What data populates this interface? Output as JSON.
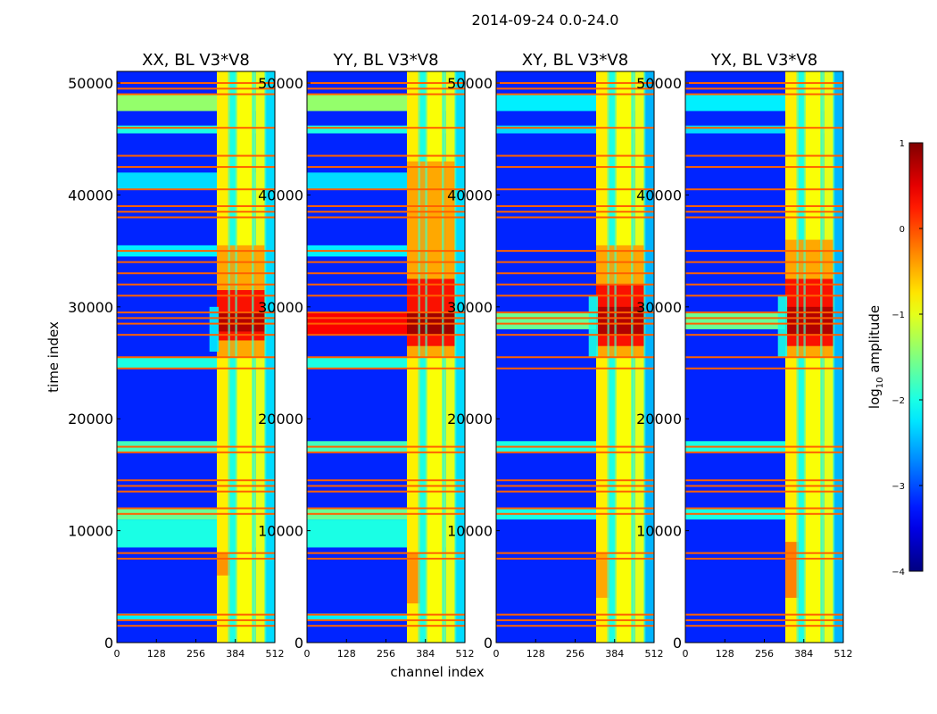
{
  "chart_data": {
    "type": "heatmap",
    "suptitle": "2014-09-24 0.0-24.0",
    "xlabel": "channel index",
    "ylabel": "time index",
    "xlim": [
      0,
      512
    ],
    "ylim": [
      0,
      51040
    ],
    "xticks": [
      "0",
      "128",
      "256",
      "384",
      "512"
    ],
    "xtick_values": [
      0,
      128,
      256,
      384,
      512
    ],
    "yticks": [
      "0",
      "10000",
      "20000",
      "30000",
      "40000",
      "50000"
    ],
    "ytick_values": [
      0,
      10000,
      20000,
      30000,
      40000,
      50000
    ],
    "colorbar": {
      "label": "log10 amplitude",
      "label_main": "log",
      "label_sub": "10",
      "label_rest": " amplitude",
      "range": [
        -4,
        1
      ],
      "ticks": [
        "1",
        "0",
        "−1",
        "−2",
        "−3",
        "−4"
      ],
      "tick_values": [
        1,
        0,
        -1,
        -2,
        -3,
        -4
      ]
    },
    "background_level": -3.2,
    "rfi_lines": [
      50000,
      49500,
      49000,
      46000,
      43500,
      42500,
      40500,
      39000,
      38500,
      38000,
      35000,
      34000,
      33000,
      32000,
      31000,
      29500,
      29000,
      28500,
      27500,
      25500,
      24500,
      17500,
      17000,
      14500,
      14000,
      13500,
      12000,
      11500,
      8000,
      7500,
      2500,
      2000,
      1500
    ],
    "panels": [
      {
        "title": "XX, BL V3*V8",
        "hbands": [
          [
            47500,
            49000,
            -1.4
          ],
          [
            45500,
            46200,
            -2.0
          ],
          [
            40500,
            42000,
            -2.3
          ],
          [
            34500,
            35500,
            -2.2
          ],
          [
            24500,
            25500,
            -2.0
          ],
          [
            17000,
            18000,
            -1.8
          ],
          [
            11000,
            12000,
            -1.6
          ],
          [
            8500,
            11000,
            -2.0
          ],
          [
            2000,
            2600,
            -2.2
          ]
        ],
        "vbands": [
          [
            324,
            367,
            -0.8
          ],
          [
            367,
            385,
            -2.0
          ],
          [
            385,
            440,
            -0.9
          ],
          [
            440,
            451,
            -1.6
          ],
          [
            451,
            480,
            -1.0
          ],
          [
            480,
            512,
            -2.3
          ]
        ],
        "blobs": [
          [
            324,
            480,
            25500,
            35500,
            -0.4
          ],
          [
            324,
            480,
            27000,
            31500,
            0.4
          ],
          [
            324,
            480,
            27800,
            29500,
            0.8
          ],
          [
            324,
            367,
            6000,
            8000,
            -0.3
          ],
          [
            300,
            330,
            26000,
            30000,
            -2.2
          ]
        ]
      },
      {
        "title": "YY, BL V3*V8",
        "hbands": [
          [
            47500,
            49000,
            -1.4
          ],
          [
            45500,
            46200,
            -2.0
          ],
          [
            40500,
            42000,
            -2.3
          ],
          [
            34500,
            35500,
            -2.2
          ],
          [
            27500,
            29500,
            0.4
          ],
          [
            24500,
            25500,
            -2.0
          ],
          [
            17000,
            18000,
            -1.8
          ],
          [
            11000,
            12000,
            -1.6
          ],
          [
            8500,
            11000,
            -2.0
          ],
          [
            2000,
            2600,
            -2.2
          ]
        ],
        "vbands": [
          [
            324,
            367,
            -0.8
          ],
          [
            367,
            385,
            -2.0
          ],
          [
            385,
            440,
            -0.9
          ],
          [
            440,
            451,
            -1.6
          ],
          [
            451,
            480,
            -1.0
          ],
          [
            480,
            512,
            -2.3
          ]
        ],
        "blobs": [
          [
            324,
            480,
            25500,
            43000,
            -0.4
          ],
          [
            324,
            480,
            26500,
            32500,
            0.4
          ],
          [
            324,
            480,
            27500,
            29500,
            0.9
          ],
          [
            324,
            367,
            3500,
            8000,
            -0.3
          ]
        ]
      },
      {
        "title": "XY, BL V3*V8",
        "hbands": [
          [
            47500,
            49000,
            -2.2
          ],
          [
            45500,
            46200,
            -2.3
          ],
          [
            28000,
            29500,
            -1.6
          ],
          [
            17000,
            18000,
            -2.0
          ],
          [
            11000,
            12000,
            -2.0
          ]
        ],
        "vbands": [
          [
            324,
            367,
            -0.8
          ],
          [
            367,
            385,
            -2.0
          ],
          [
            385,
            440,
            -0.9
          ],
          [
            440,
            451,
            -1.6
          ],
          [
            451,
            480,
            -1.0
          ],
          [
            480,
            512,
            -2.5
          ]
        ],
        "blobs": [
          [
            324,
            480,
            25500,
            35500,
            -0.4
          ],
          [
            324,
            480,
            26500,
            32000,
            0.4
          ],
          [
            324,
            480,
            27500,
            30000,
            0.8
          ],
          [
            300,
            330,
            25500,
            31000,
            -2.0
          ],
          [
            324,
            367,
            4000,
            8000,
            -0.4
          ]
        ]
      },
      {
        "title": "YX, BL V3*V8",
        "hbands": [
          [
            47500,
            49000,
            -2.2
          ],
          [
            45500,
            46200,
            -2.3
          ],
          [
            28000,
            29500,
            -1.6
          ],
          [
            17000,
            18000,
            -2.0
          ],
          [
            11000,
            12000,
            -2.0
          ]
        ],
        "vbands": [
          [
            324,
            367,
            -0.8
          ],
          [
            367,
            385,
            -2.0
          ],
          [
            385,
            440,
            -0.9
          ],
          [
            440,
            451,
            -1.6
          ],
          [
            451,
            480,
            -1.0
          ],
          [
            480,
            512,
            -2.5
          ]
        ],
        "blobs": [
          [
            324,
            480,
            25500,
            36000,
            -0.4
          ],
          [
            324,
            480,
            26500,
            32500,
            0.4
          ],
          [
            324,
            480,
            27500,
            30000,
            0.8
          ],
          [
            300,
            330,
            25500,
            31000,
            -2.0
          ],
          [
            324,
            367,
            4000,
            9000,
            -0.2
          ]
        ]
      }
    ]
  }
}
